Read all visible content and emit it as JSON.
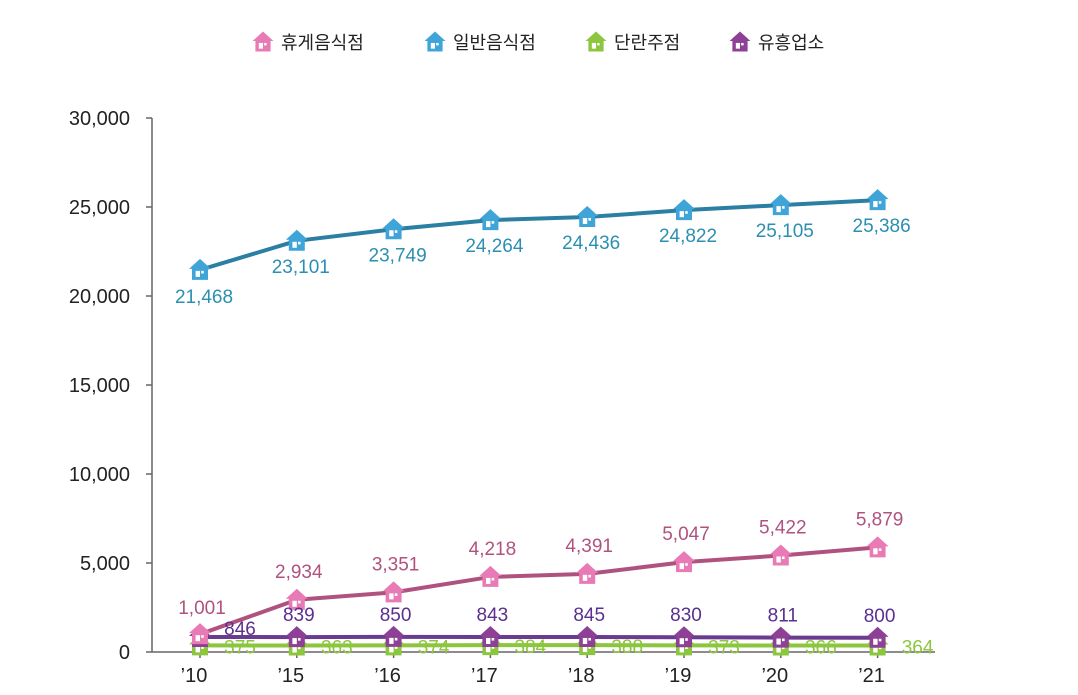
{
  "chart_data": {
    "type": "line",
    "title": "",
    "xlabel": "",
    "ylabel": "",
    "categories": [
      "’10",
      "’15",
      "’16",
      "’17",
      "’18",
      "’19",
      "’20",
      "’21"
    ],
    "yticks": [
      "0",
      "5,000",
      "10,000",
      "15,000",
      "20,000",
      "25,000",
      "30,000"
    ],
    "ylim": [
      0,
      30000
    ],
    "grid": false,
    "legend_position": "top",
    "series": [
      {
        "name": "휴게음식점",
        "color": "#b0527f",
        "marker_color": "#e87bb5",
        "label_color": "#b0527f",
        "values": [
          1001,
          2934,
          3351,
          4218,
          4391,
          5047,
          5422,
          5879
        ],
        "labels": [
          "1,001",
          "2,934",
          "3,351",
          "4,218",
          "4,391",
          "5,047",
          "5,422",
          "5,879"
        ]
      },
      {
        "name": "일반음식점",
        "color": "#2b7fa3",
        "marker_color": "#3fa4d8",
        "label_color": "#2b8fb3",
        "values": [
          21468,
          23101,
          23749,
          24264,
          24436,
          24822,
          25105,
          25386
        ],
        "labels": [
          "21,468",
          "23,101",
          "23,749",
          "24,264",
          "24,436",
          "24,822",
          "25,105",
          "25,386"
        ]
      },
      {
        "name": "단란주점",
        "color": "#8cc63f",
        "marker_color": "#8cc63f",
        "label_color": "#8cc63f",
        "values": [
          375,
          363,
          374,
          384,
          388,
          373,
          366,
          364
        ],
        "labels": [
          "375",
          "363",
          "374",
          "384",
          "388",
          "373",
          "366",
          "364"
        ]
      },
      {
        "name": "유흥업소",
        "color": "#6a3b8f",
        "marker_color": "#8e3f96",
        "label_color": "#5b2f8f",
        "values": [
          846,
          839,
          850,
          843,
          845,
          830,
          811,
          800
        ],
        "labels": [
          "846",
          "839",
          "850",
          "843",
          "845",
          "830",
          "811",
          "800"
        ]
      }
    ]
  }
}
